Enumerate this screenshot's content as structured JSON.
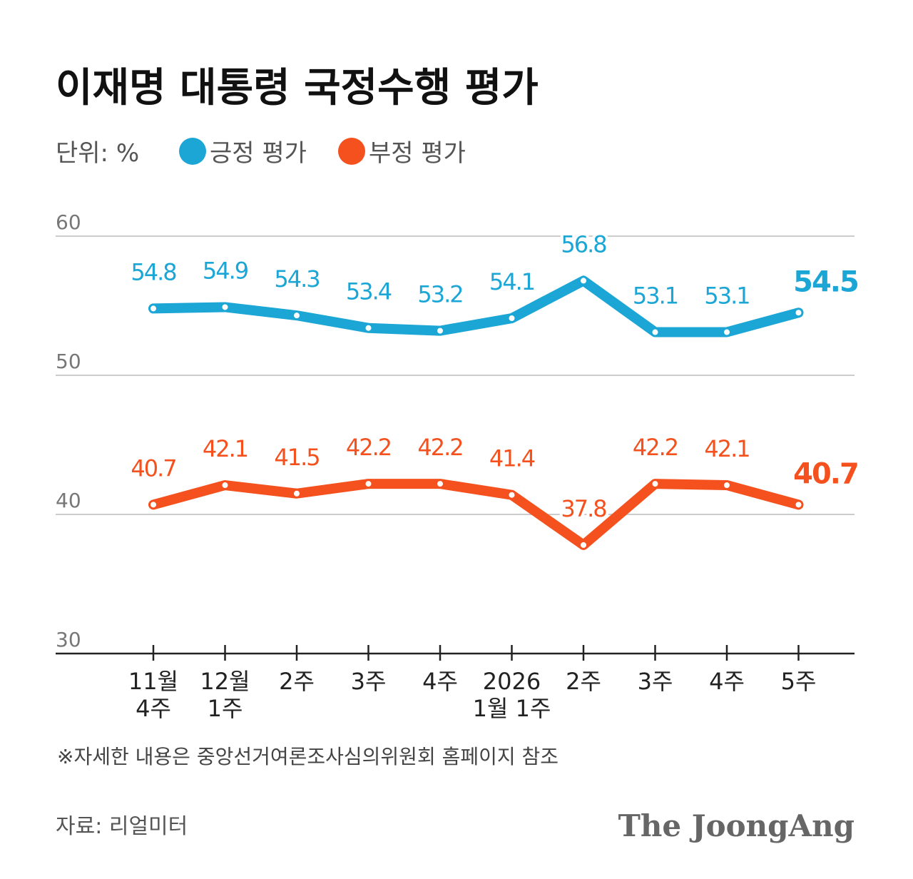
{
  "chart_data": {
    "type": "line",
    "title": "이재명 대통령 국정수행 평가",
    "unit_label": "단위: %",
    "categories": [
      [
        "11월",
        "4주"
      ],
      [
        "12월",
        "1주"
      ],
      [
        "2주"
      ],
      [
        "3주"
      ],
      [
        "4주"
      ],
      [
        "2026",
        "1월 1주"
      ],
      [
        "2주"
      ],
      [
        "3주"
      ],
      [
        "4주"
      ],
      [
        "5주"
      ]
    ],
    "series": [
      {
        "name": "긍정 평가",
        "color": "#1ba6d6",
        "values": [
          54.8,
          54.9,
          54.3,
          53.4,
          53.2,
          54.1,
          56.8,
          53.1,
          53.1,
          54.5
        ]
      },
      {
        "name": "부정 평가",
        "color": "#f4511e",
        "values": [
          40.7,
          42.1,
          41.5,
          42.2,
          42.2,
          41.4,
          37.8,
          42.2,
          42.1,
          40.7
        ]
      }
    ],
    "ylim": [
      30,
      60
    ],
    "yticks": [
      30,
      40,
      50,
      60
    ],
    "grid": true,
    "note": "※자세한 내용은 중앙선거여론조사심의위원회 홈페이지 참조",
    "source": "자료: 리얼미터",
    "brand": "The JoongAng"
  }
}
